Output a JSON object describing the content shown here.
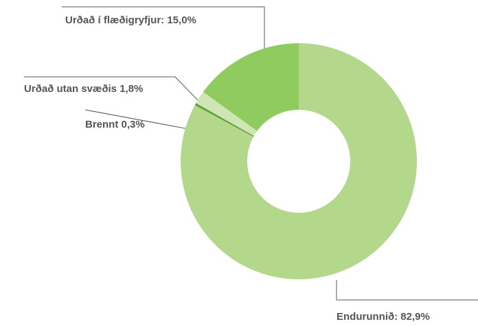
{
  "chart_data": {
    "type": "donut",
    "values": [
      82.9,
      0.3,
      1.8,
      15.0
    ],
    "value_labels": [
      "Endurunnið: 82,9%",
      "Brennt 0,3%",
      "Urðað utan svæðis 1,8%",
      "Urðað í flæðigryfjur: 15,0%"
    ],
    "colors": [
      "#b3d88b",
      "#5f9e3a",
      "#cfe6b4",
      "#8fcb5f"
    ]
  }
}
